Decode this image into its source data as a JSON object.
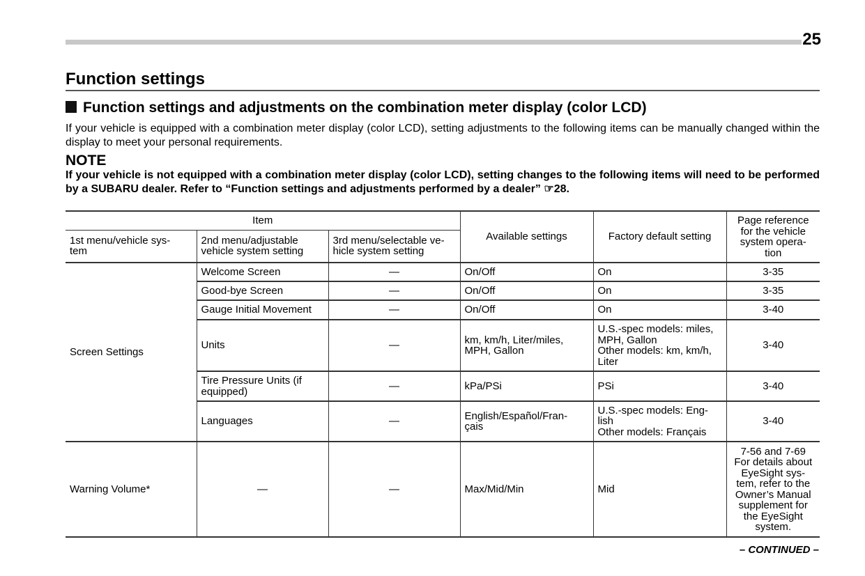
{
  "page_number": "25",
  "title": "Function settings",
  "section_title": "Function settings and adjustments on the combination meter display (color LCD)",
  "intro": "If your vehicle is equipped with a combination meter display (color LCD), setting adjustments to the following items can be manually changed within the display to meet your personal requirements.",
  "note_heading": "NOTE",
  "note_text": "If your vehicle is not equipped with a combination meter display (color LCD), setting changes to the following items will need to be performed by a SUBARU dealer. Refer to “Function settings and adjustments performed by a dealer” ☞28.",
  "table": {
    "headers": {
      "item": "Item",
      "menu1": "1st menu/vehicle sys-\ntem",
      "menu2": "2nd menu/adjustable\nvehicle system setting",
      "menu3": "3rd menu/selectable ve-\nhicle system setting",
      "available": "Available settings",
      "default": "Factory default setting",
      "page_ref": "Page reference\nfor the vehicle\nsystem opera-\ntion"
    },
    "groups": [
      {
        "menu1": "Screen Settings",
        "rows": [
          {
            "menu2": "Welcome Screen",
            "menu3": "—",
            "available": "On/Off",
            "default": "On",
            "page_ref": "3-35"
          },
          {
            "menu2": "Good-bye Screen",
            "menu3": "—",
            "available": "On/Off",
            "default": "On",
            "page_ref": "3-35"
          },
          {
            "menu2": "Gauge Initial Movement",
            "menu3": "—",
            "available": "On/Off",
            "default": "On",
            "page_ref": "3-40"
          },
          {
            "menu2": "Units",
            "menu3": "—",
            "available": "km, km/h, Liter/miles,\nMPH, Gallon",
            "default": "U.S.-spec models: miles,\nMPH, Gallon\nOther models: km, km/h,\nLiter",
            "page_ref": "3-40"
          },
          {
            "menu2": "Tire Pressure Units (if\nequipped)",
            "menu3": "—",
            "available": "kPa/PSi",
            "default": "PSi",
            "page_ref": "3-40"
          },
          {
            "menu2": "Languages",
            "menu3": "—",
            "available": "English/Español/Fran-\nçais",
            "default": "U.S.-spec models: Eng-\nlish\nOther models: Français",
            "page_ref": "3-40"
          }
        ]
      },
      {
        "menu1": "Warning Volume*",
        "rows": [
          {
            "menu2": "—",
            "menu3": "—",
            "available": "Max/Mid/Min",
            "default": "Mid",
            "page_ref": "7-56 and 7-69\nFor details about\nEyeSight sys-\ntem, refer to the\nOwner’s Manual\nsupplement for\nthe EyeSight\nsystem."
          }
        ]
      }
    ]
  },
  "continued": "– CONTINUED –"
}
